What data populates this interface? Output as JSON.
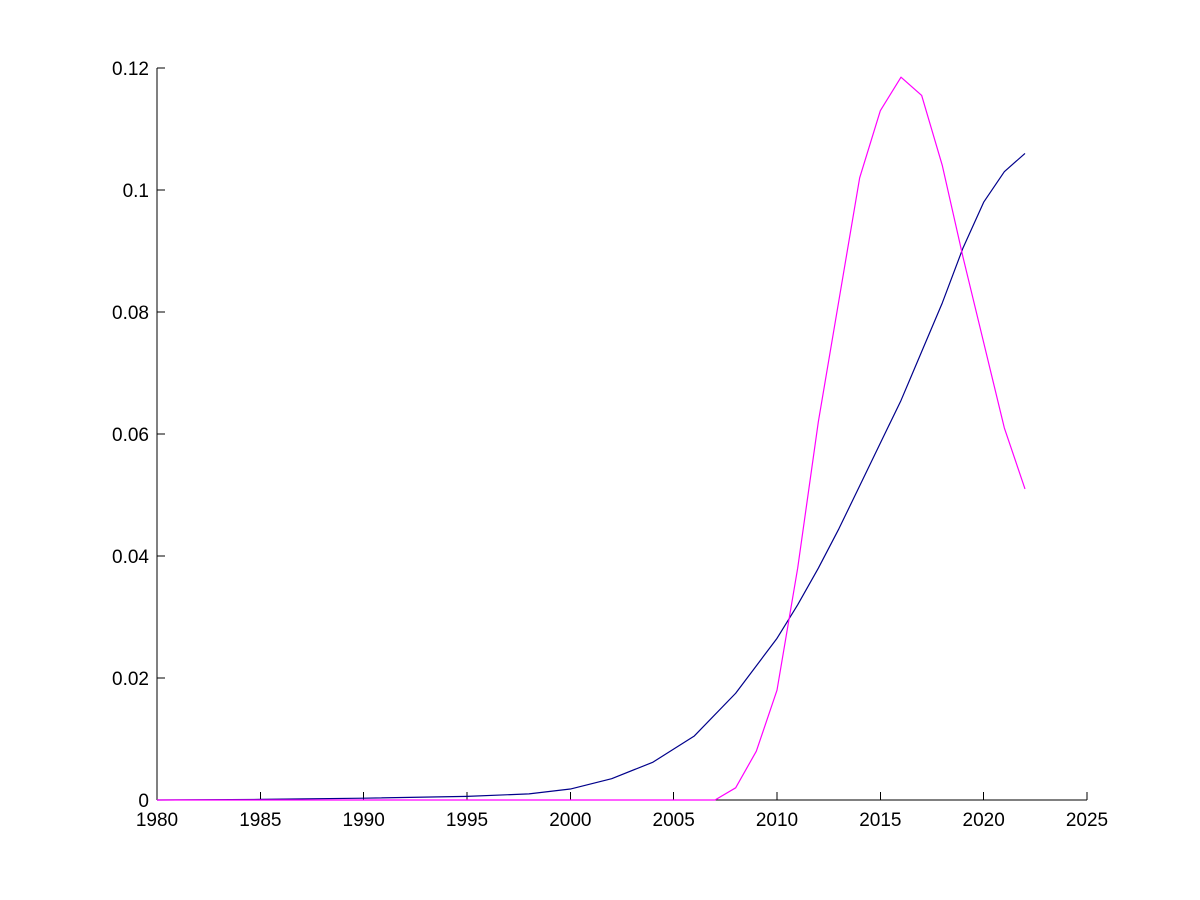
{
  "chart_data": {
    "type": "line",
    "title": "",
    "xlabel": "",
    "ylabel": "",
    "xlim": [
      1980,
      2025
    ],
    "ylim": [
      0,
      0.12
    ],
    "grid": false,
    "xticks": [
      1980,
      1985,
      1990,
      1995,
      2000,
      2005,
      2010,
      2015,
      2020,
      2025
    ],
    "xtick_labels": [
      "1980",
      "1985",
      "1990",
      "1995",
      "2000",
      "2005",
      "2010",
      "2015",
      "2020",
      "2025"
    ],
    "yticks": [
      0,
      0.02,
      0.04,
      0.06,
      0.08,
      0.1,
      0.12
    ],
    "ytick_labels": [
      "0",
      "0.02",
      "0.04",
      "0.06",
      "0.08",
      "0.1",
      "0.12"
    ],
    "series": [
      {
        "color": "#00008B",
        "x": [
          1980,
          1985,
          1990,
          1995,
          1998,
          2000,
          2002,
          2004,
          2006,
          2008,
          2010,
          2011,
          2012,
          2013,
          2014,
          2015,
          2016,
          2017,
          2018,
          2019,
          2020,
          2021,
          2022
        ],
        "y": [
          0.0,
          0.0001,
          0.0003,
          0.0006,
          0.001,
          0.0018,
          0.0035,
          0.0062,
          0.0105,
          0.0175,
          0.0265,
          0.032,
          0.038,
          0.0445,
          0.0515,
          0.0585,
          0.0655,
          0.0735,
          0.0815,
          0.0905,
          0.098,
          0.103,
          0.106
        ]
      },
      {
        "color": "#FF00FF",
        "x": [
          1980,
          2007,
          2008,
          2009,
          2010,
          2011,
          2012,
          2013,
          2014,
          2015,
          2016,
          2017,
          2018,
          2019,
          2020,
          2021,
          2022
        ],
        "y": [
          0.0,
          0.0,
          0.002,
          0.008,
          0.018,
          0.038,
          0.062,
          0.082,
          0.102,
          0.113,
          0.1185,
          0.1155,
          0.104,
          0.089,
          0.075,
          0.061,
          0.051
        ]
      }
    ]
  }
}
